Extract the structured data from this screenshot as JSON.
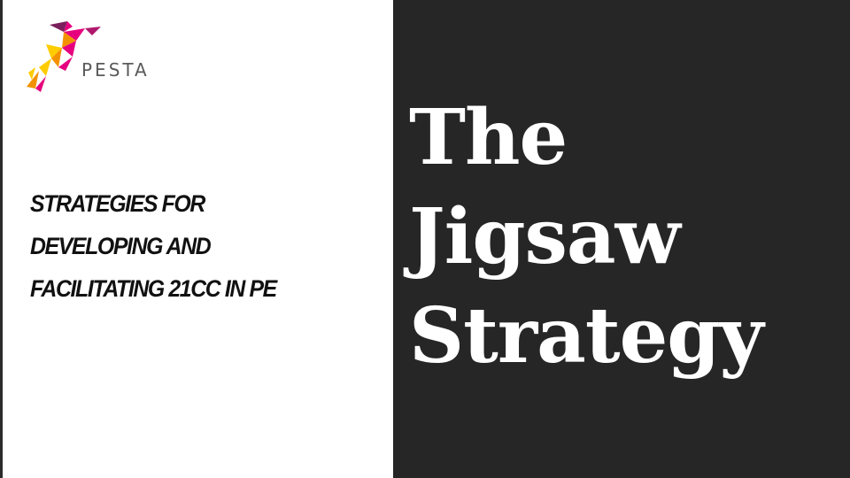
{
  "logo": {
    "text": "PESTA",
    "icon": "runner-logo-icon",
    "colors": [
      "#e6007e",
      "#f39200",
      "#ffcc00",
      "#7a1f5c"
    ]
  },
  "subtitle": {
    "lines": [
      "STRATEGIES FOR",
      "DEVELOPING AND",
      "FACILITATING 21CC IN PE"
    ]
  },
  "title": {
    "lines": [
      "The",
      "Jigsaw",
      "Strategy"
    ]
  },
  "colors": {
    "right_panel": "#262626",
    "left_panel": "#ffffff",
    "title_text": "#ffffff",
    "subtitle_text": "#111111"
  }
}
